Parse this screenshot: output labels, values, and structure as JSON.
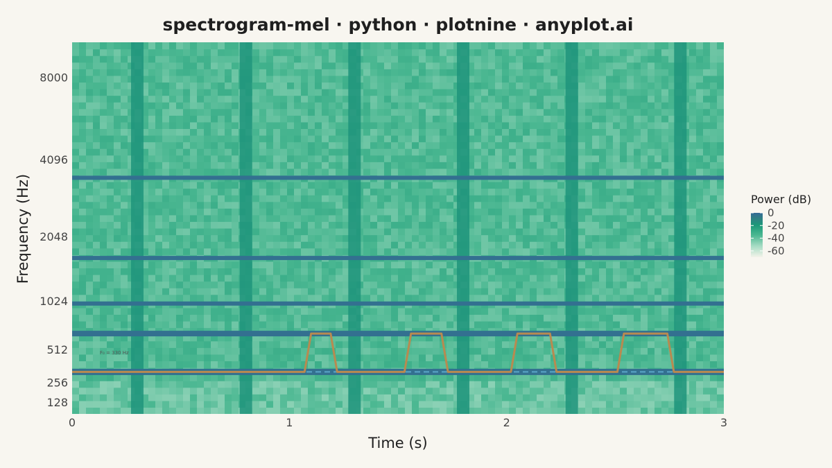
{
  "chart_data": {
    "type": "heatmap",
    "title": "spectrogram-mel · python · plotnine · anyplot.ai",
    "xlabel": "Time (s)",
    "ylabel": "Frequency (Hz)",
    "xlim": [
      0,
      3
    ],
    "ylim_hz": [
      60,
      10500
    ],
    "y_scale": "mel",
    "x_ticks": [
      0,
      1,
      2,
      3
    ],
    "y_ticks": [
      128,
      256,
      512,
      1024,
      2048,
      4096,
      8000
    ],
    "grid": false,
    "colormap": {
      "name": "Power (dB)",
      "range": [
        -70,
        0
      ],
      "ticks": [
        0,
        -20,
        -40,
        -60
      ],
      "stops": [
        "#f3f3ea",
        "#a6dcc4",
        "#4ab791",
        "#1b9a78",
        "#2f7f84",
        "#356a95"
      ]
    },
    "legend_position": "right",
    "harmonic_bands_hz": [
      330,
      660,
      990,
      1650,
      3500
    ],
    "onsets_s": [
      0.3,
      0.8,
      1.3,
      1.8,
      2.3,
      2.8
    ],
    "f0_contour": {
      "color": "#b88a50",
      "baseline_hz": 330,
      "high_hz": 660,
      "points": [
        [
          0.0,
          330
        ],
        [
          1.07,
          330
        ],
        [
          1.1,
          660
        ],
        [
          1.19,
          660
        ],
        [
          1.22,
          330
        ],
        [
          1.53,
          330
        ],
        [
          1.56,
          660
        ],
        [
          1.7,
          660
        ],
        [
          1.73,
          330
        ],
        [
          2.02,
          330
        ],
        [
          2.05,
          660
        ],
        [
          2.2,
          660
        ],
        [
          2.23,
          330
        ],
        [
          2.51,
          330
        ],
        [
          2.54,
          660
        ],
        [
          2.74,
          660
        ],
        [
          2.77,
          330
        ],
        [
          3.0,
          330
        ]
      ]
    },
    "reference_line": {
      "hz": 330,
      "style": "dashed",
      "color": "#5aa6c8"
    },
    "annotation": "F₀ = 330 Hz"
  }
}
